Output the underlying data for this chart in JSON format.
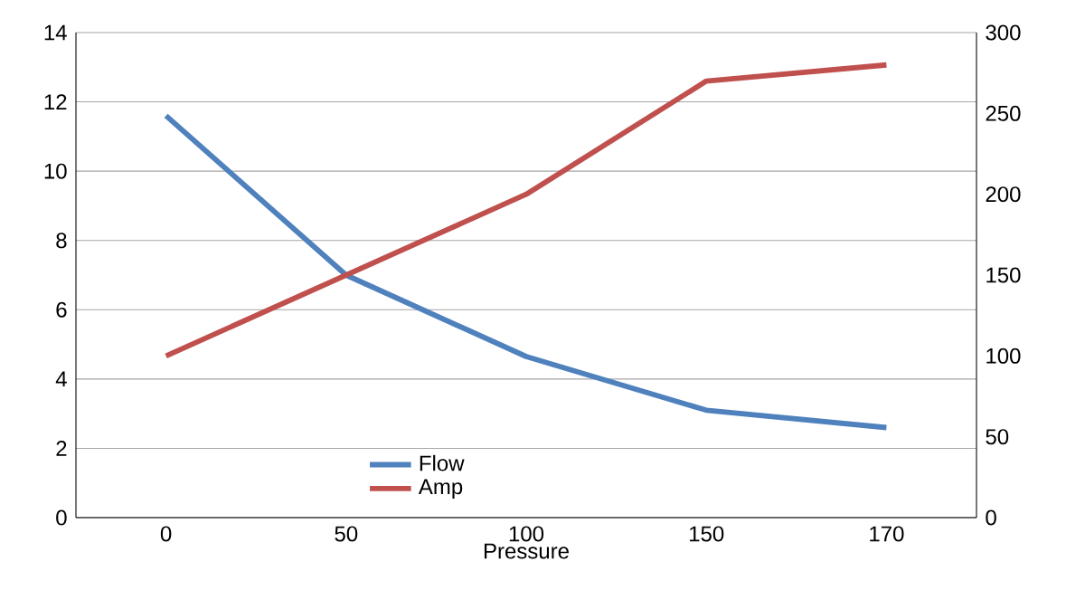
{
  "chart_data": {
    "type": "line",
    "xlabel": "Pressure",
    "categories": [
      "0",
      "50",
      "100",
      "150",
      "170"
    ],
    "series": [
      {
        "name": "Flow",
        "color": "#4f81bd",
        "values": [
          11.6,
          7.0,
          4.65,
          3.1,
          2.6
        ]
      },
      {
        "name": "Amp",
        "color": "#c0504d",
        "axis": "y2",
        "values": [
          100,
          150,
          200,
          270,
          280
        ]
      }
    ],
    "ylim": [
      0,
      14
    ],
    "yticks": [
      0,
      2,
      4,
      6,
      8,
      10,
      12,
      14
    ],
    "y2lim": [
      0,
      300
    ],
    "y2ticks": [
      0,
      50,
      100,
      150,
      200,
      250,
      300
    ],
    "grid": "y",
    "legend": "bottom",
    "marker": "none",
    "line_style": "solid"
  }
}
